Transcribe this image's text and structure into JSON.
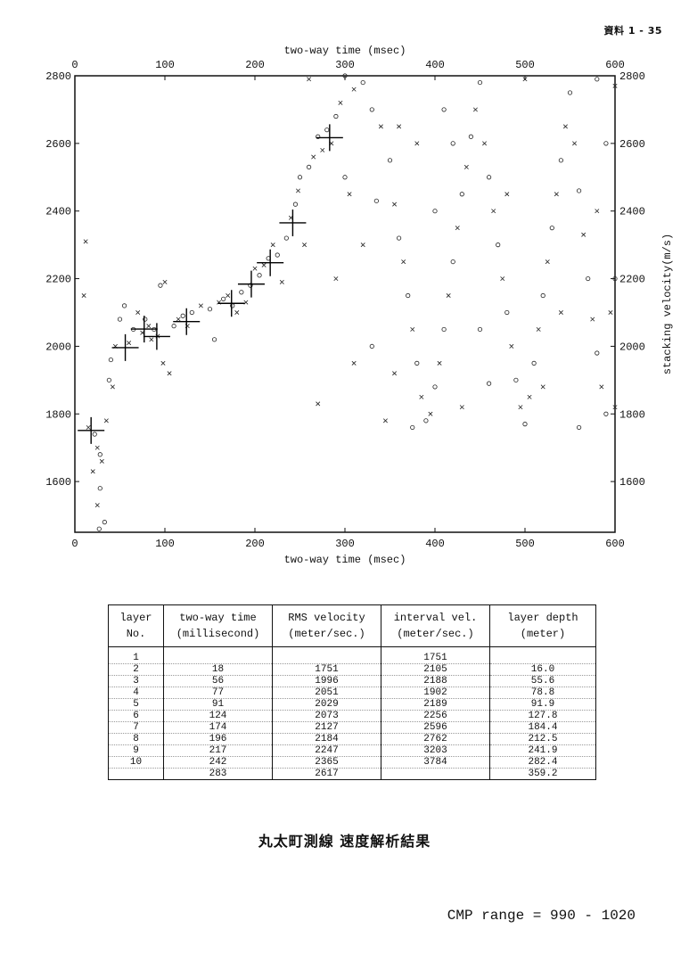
{
  "page_ref": "資料 1 - 35",
  "chart_data": {
    "type": "scatter",
    "title": "",
    "xlabel": "two-way time (msec)",
    "ylabel": "stacking velocity(m/s)",
    "xlim": [
      0,
      600
    ],
    "ylim": [
      1450,
      2800
    ],
    "xticks": [
      0,
      100,
      200,
      300,
      400,
      500,
      600
    ],
    "yticks": [
      1600,
      1800,
      2000,
      2200,
      2400,
      2600,
      2800
    ],
    "picks": [
      {
        "t": 18,
        "v": 1751
      },
      {
        "t": 56,
        "v": 1996
      },
      {
        "t": 77,
        "v": 2051
      },
      {
        "t": 91,
        "v": 2029
      },
      {
        "t": 124,
        "v": 2073
      },
      {
        "t": 174,
        "v": 2127
      },
      {
        "t": 196,
        "v": 2184
      },
      {
        "t": 217,
        "v": 2247
      },
      {
        "t": 242,
        "v": 2365
      },
      {
        "t": 283,
        "v": 2617
      }
    ],
    "scatter_points": [
      {
        "t": 15,
        "v": 1760,
        "m": "x"
      },
      {
        "t": 22,
        "v": 1740,
        "m": "o"
      },
      {
        "t": 25,
        "v": 1700,
        "m": "x"
      },
      {
        "t": 28,
        "v": 1680,
        "m": "o"
      },
      {
        "t": 30,
        "v": 1660,
        "m": "x"
      },
      {
        "t": 20,
        "v": 1630,
        "m": "x"
      },
      {
        "t": 28,
        "v": 1580,
        "m": "o"
      },
      {
        "t": 25,
        "v": 1530,
        "m": "x"
      },
      {
        "t": 27,
        "v": 1460,
        "m": "o"
      },
      {
        "t": 33,
        "v": 1480,
        "m": "o"
      },
      {
        "t": 35,
        "v": 1780,
        "m": "x"
      },
      {
        "t": 12,
        "v": 2310,
        "m": "x"
      },
      {
        "t": 10,
        "v": 2150,
        "m": "x"
      },
      {
        "t": 38,
        "v": 1900,
        "m": "o"
      },
      {
        "t": 42,
        "v": 1880,
        "m": "x"
      },
      {
        "t": 40,
        "v": 1960,
        "m": "o"
      },
      {
        "t": 45,
        "v": 2000,
        "m": "x"
      },
      {
        "t": 50,
        "v": 2080,
        "m": "o"
      },
      {
        "t": 55,
        "v": 2120,
        "m": "o"
      },
      {
        "t": 60,
        "v": 2010,
        "m": "x"
      },
      {
        "t": 65,
        "v": 2050,
        "m": "o"
      },
      {
        "t": 70,
        "v": 2100,
        "m": "x"
      },
      {
        "t": 75,
        "v": 2040,
        "m": "x"
      },
      {
        "t": 78,
        "v": 2080,
        "m": "o"
      },
      {
        "t": 82,
        "v": 2060,
        "m": "x"
      },
      {
        "t": 85,
        "v": 2020,
        "m": "x"
      },
      {
        "t": 88,
        "v": 2050,
        "m": "o"
      },
      {
        "t": 92,
        "v": 2030,
        "m": "x"
      },
      {
        "t": 95,
        "v": 2180,
        "m": "o"
      },
      {
        "t": 100,
        "v": 2190,
        "m": "x"
      },
      {
        "t": 98,
        "v": 1950,
        "m": "x"
      },
      {
        "t": 105,
        "v": 1920,
        "m": "x"
      },
      {
        "t": 110,
        "v": 2060,
        "m": "o"
      },
      {
        "t": 115,
        "v": 2080,
        "m": "x"
      },
      {
        "t": 120,
        "v": 2090,
        "m": "o"
      },
      {
        "t": 125,
        "v": 2060,
        "m": "x"
      },
      {
        "t": 130,
        "v": 2100,
        "m": "o"
      },
      {
        "t": 140,
        "v": 2120,
        "m": "x"
      },
      {
        "t": 150,
        "v": 2110,
        "m": "o"
      },
      {
        "t": 155,
        "v": 2020,
        "m": "o"
      },
      {
        "t": 160,
        "v": 2130,
        "m": "x"
      },
      {
        "t": 165,
        "v": 2140,
        "m": "o"
      },
      {
        "t": 170,
        "v": 2150,
        "m": "x"
      },
      {
        "t": 175,
        "v": 2120,
        "m": "o"
      },
      {
        "t": 180,
        "v": 2100,
        "m": "x"
      },
      {
        "t": 185,
        "v": 2160,
        "m": "o"
      },
      {
        "t": 190,
        "v": 2130,
        "m": "x"
      },
      {
        "t": 195,
        "v": 2180,
        "m": "o"
      },
      {
        "t": 200,
        "v": 2230,
        "m": "x"
      },
      {
        "t": 205,
        "v": 2210,
        "m": "o"
      },
      {
        "t": 210,
        "v": 2240,
        "m": "x"
      },
      {
        "t": 215,
        "v": 2260,
        "m": "o"
      },
      {
        "t": 220,
        "v": 2300,
        "m": "x"
      },
      {
        "t": 225,
        "v": 2270,
        "m": "o"
      },
      {
        "t": 230,
        "v": 2190,
        "m": "x"
      },
      {
        "t": 235,
        "v": 2320,
        "m": "o"
      },
      {
        "t": 240,
        "v": 2380,
        "m": "x"
      },
      {
        "t": 245,
        "v": 2420,
        "m": "o"
      },
      {
        "t": 248,
        "v": 2460,
        "m": "x"
      },
      {
        "t": 250,
        "v": 2500,
        "m": "o"
      },
      {
        "t": 255,
        "v": 2300,
        "m": "x"
      },
      {
        "t": 260,
        "v": 2530,
        "m": "o"
      },
      {
        "t": 265,
        "v": 2560,
        "m": "x"
      },
      {
        "t": 270,
        "v": 2620,
        "m": "o"
      },
      {
        "t": 275,
        "v": 2580,
        "m": "x"
      },
      {
        "t": 280,
        "v": 2640,
        "m": "o"
      },
      {
        "t": 285,
        "v": 2600,
        "m": "x"
      },
      {
        "t": 290,
        "v": 2680,
        "m": "o"
      },
      {
        "t": 295,
        "v": 2720,
        "m": "x"
      },
      {
        "t": 300,
        "v": 2500,
        "m": "o"
      },
      {
        "t": 305,
        "v": 2450,
        "m": "x"
      },
      {
        "t": 290,
        "v": 2200,
        "m": "x"
      },
      {
        "t": 300,
        "v": 2800,
        "m": "o"
      },
      {
        "t": 310,
        "v": 2760,
        "m": "x"
      },
      {
        "t": 320,
        "v": 2780,
        "m": "o"
      },
      {
        "t": 260,
        "v": 2790,
        "m": "x"
      },
      {
        "t": 330,
        "v": 2700,
        "m": "o"
      },
      {
        "t": 340,
        "v": 2650,
        "m": "x"
      },
      {
        "t": 350,
        "v": 2550,
        "m": "o"
      },
      {
        "t": 355,
        "v": 2420,
        "m": "x"
      },
      {
        "t": 360,
        "v": 2320,
        "m": "o"
      },
      {
        "t": 365,
        "v": 2250,
        "m": "x"
      },
      {
        "t": 370,
        "v": 2150,
        "m": "o"
      },
      {
        "t": 375,
        "v": 2050,
        "m": "x"
      },
      {
        "t": 380,
        "v": 1950,
        "m": "o"
      },
      {
        "t": 385,
        "v": 1850,
        "m": "x"
      },
      {
        "t": 390,
        "v": 1780,
        "m": "o"
      },
      {
        "t": 395,
        "v": 1800,
        "m": "x"
      },
      {
        "t": 400,
        "v": 1880,
        "m": "o"
      },
      {
        "t": 405,
        "v": 1950,
        "m": "x"
      },
      {
        "t": 410,
        "v": 2050,
        "m": "o"
      },
      {
        "t": 415,
        "v": 2150,
        "m": "x"
      },
      {
        "t": 420,
        "v": 2250,
        "m": "o"
      },
      {
        "t": 425,
        "v": 2350,
        "m": "x"
      },
      {
        "t": 430,
        "v": 2450,
        "m": "o"
      },
      {
        "t": 435,
        "v": 2530,
        "m": "x"
      },
      {
        "t": 440,
        "v": 2620,
        "m": "o"
      },
      {
        "t": 445,
        "v": 2700,
        "m": "x"
      },
      {
        "t": 450,
        "v": 2780,
        "m": "o"
      },
      {
        "t": 455,
        "v": 2600,
        "m": "x"
      },
      {
        "t": 460,
        "v": 2500,
        "m": "o"
      },
      {
        "t": 465,
        "v": 2400,
        "m": "x"
      },
      {
        "t": 470,
        "v": 2300,
        "m": "o"
      },
      {
        "t": 475,
        "v": 2200,
        "m": "x"
      },
      {
        "t": 480,
        "v": 2100,
        "m": "o"
      },
      {
        "t": 485,
        "v": 2000,
        "m": "x"
      },
      {
        "t": 490,
        "v": 1900,
        "m": "o"
      },
      {
        "t": 495,
        "v": 1820,
        "m": "x"
      },
      {
        "t": 500,
        "v": 1770,
        "m": "o"
      },
      {
        "t": 505,
        "v": 1850,
        "m": "x"
      },
      {
        "t": 510,
        "v": 1950,
        "m": "o"
      },
      {
        "t": 515,
        "v": 2050,
        "m": "x"
      },
      {
        "t": 520,
        "v": 2150,
        "m": "o"
      },
      {
        "t": 525,
        "v": 2250,
        "m": "x"
      },
      {
        "t": 530,
        "v": 2350,
        "m": "o"
      },
      {
        "t": 535,
        "v": 2450,
        "m": "x"
      },
      {
        "t": 540,
        "v": 2550,
        "m": "o"
      },
      {
        "t": 545,
        "v": 2650,
        "m": "x"
      },
      {
        "t": 550,
        "v": 2750,
        "m": "o"
      },
      {
        "t": 555,
        "v": 2600,
        "m": "x"
      },
      {
        "t": 560,
        "v": 2460,
        "m": "o"
      },
      {
        "t": 565,
        "v": 2330,
        "m": "x"
      },
      {
        "t": 570,
        "v": 2200,
        "m": "o"
      },
      {
        "t": 575,
        "v": 2080,
        "m": "x"
      },
      {
        "t": 580,
        "v": 1980,
        "m": "o"
      },
      {
        "t": 585,
        "v": 1880,
        "m": "x"
      },
      {
        "t": 590,
        "v": 1800,
        "m": "o"
      },
      {
        "t": 595,
        "v": 2100,
        "m": "x"
      },
      {
        "t": 345,
        "v": 1780,
        "m": "x"
      },
      {
        "t": 375,
        "v": 1760,
        "m": "o"
      },
      {
        "t": 430,
        "v": 1820,
        "m": "x"
      },
      {
        "t": 460,
        "v": 1890,
        "m": "o"
      },
      {
        "t": 520,
        "v": 1880,
        "m": "x"
      },
      {
        "t": 560,
        "v": 1760,
        "m": "o"
      },
      {
        "t": 600,
        "v": 1820,
        "m": "x"
      },
      {
        "t": 310,
        "v": 1950,
        "m": "x"
      },
      {
        "t": 330,
        "v": 2000,
        "m": "o"
      },
      {
        "t": 355,
        "v": 1920,
        "m": "x"
      },
      {
        "t": 320,
        "v": 2300,
        "m": "x"
      },
      {
        "t": 335,
        "v": 2430,
        "m": "o"
      },
      {
        "t": 380,
        "v": 2600,
        "m": "x"
      },
      {
        "t": 410,
        "v": 2700,
        "m": "o"
      },
      {
        "t": 500,
        "v": 2790,
        "m": "x"
      },
      {
        "t": 580,
        "v": 2790,
        "m": "o"
      },
      {
        "t": 600,
        "v": 2770,
        "m": "x"
      },
      {
        "t": 590,
        "v": 2600,
        "m": "o"
      },
      {
        "t": 580,
        "v": 2400,
        "m": "x"
      },
      {
        "t": 600,
        "v": 2200,
        "m": "o"
      },
      {
        "t": 270,
        "v": 1830,
        "m": "x"
      },
      {
        "t": 400,
        "v": 2400,
        "m": "o"
      },
      {
        "t": 480,
        "v": 2450,
        "m": "x"
      },
      {
        "t": 450,
        "v": 2050,
        "m": "o"
      },
      {
        "t": 540,
        "v": 2100,
        "m": "x"
      },
      {
        "t": 420,
        "v": 2600,
        "m": "o"
      },
      {
        "t": 360,
        "v": 2650,
        "m": "x"
      }
    ]
  },
  "table": {
    "headers": [
      [
        "layer",
        "No."
      ],
      [
        "two-way time",
        "(millisecond)"
      ],
      [
        "RMS velocity",
        "(meter/sec.)"
      ],
      [
        "interval vel.",
        "(meter/sec.)"
      ],
      [
        "layer depth",
        "(meter)"
      ]
    ],
    "rows": [
      [
        "1",
        "",
        "",
        "1751",
        ""
      ],
      [
        "2",
        "18",
        "1751",
        "2105",
        "16.0"
      ],
      [
        "3",
        "56",
        "1996",
        "2188",
        "55.6"
      ],
      [
        "4",
        "77",
        "2051",
        "1902",
        "78.8"
      ],
      [
        "5",
        "91",
        "2029",
        "2189",
        "91.9"
      ],
      [
        "6",
        "124",
        "2073",
        "2256",
        "127.8"
      ],
      [
        "7",
        "174",
        "2127",
        "2596",
        "184.4"
      ],
      [
        "8",
        "196",
        "2184",
        "2762",
        "212.5"
      ],
      [
        "9",
        "217",
        "2247",
        "3203",
        "241.9"
      ],
      [
        "10",
        "242",
        "2365",
        "3784",
        "282.4"
      ],
      [
        "",
        "283",
        "2617",
        "",
        "359.2"
      ]
    ]
  },
  "caption": "丸太町測線  速度解析結果",
  "cmp_range": "CMP range =   990 - 1020"
}
